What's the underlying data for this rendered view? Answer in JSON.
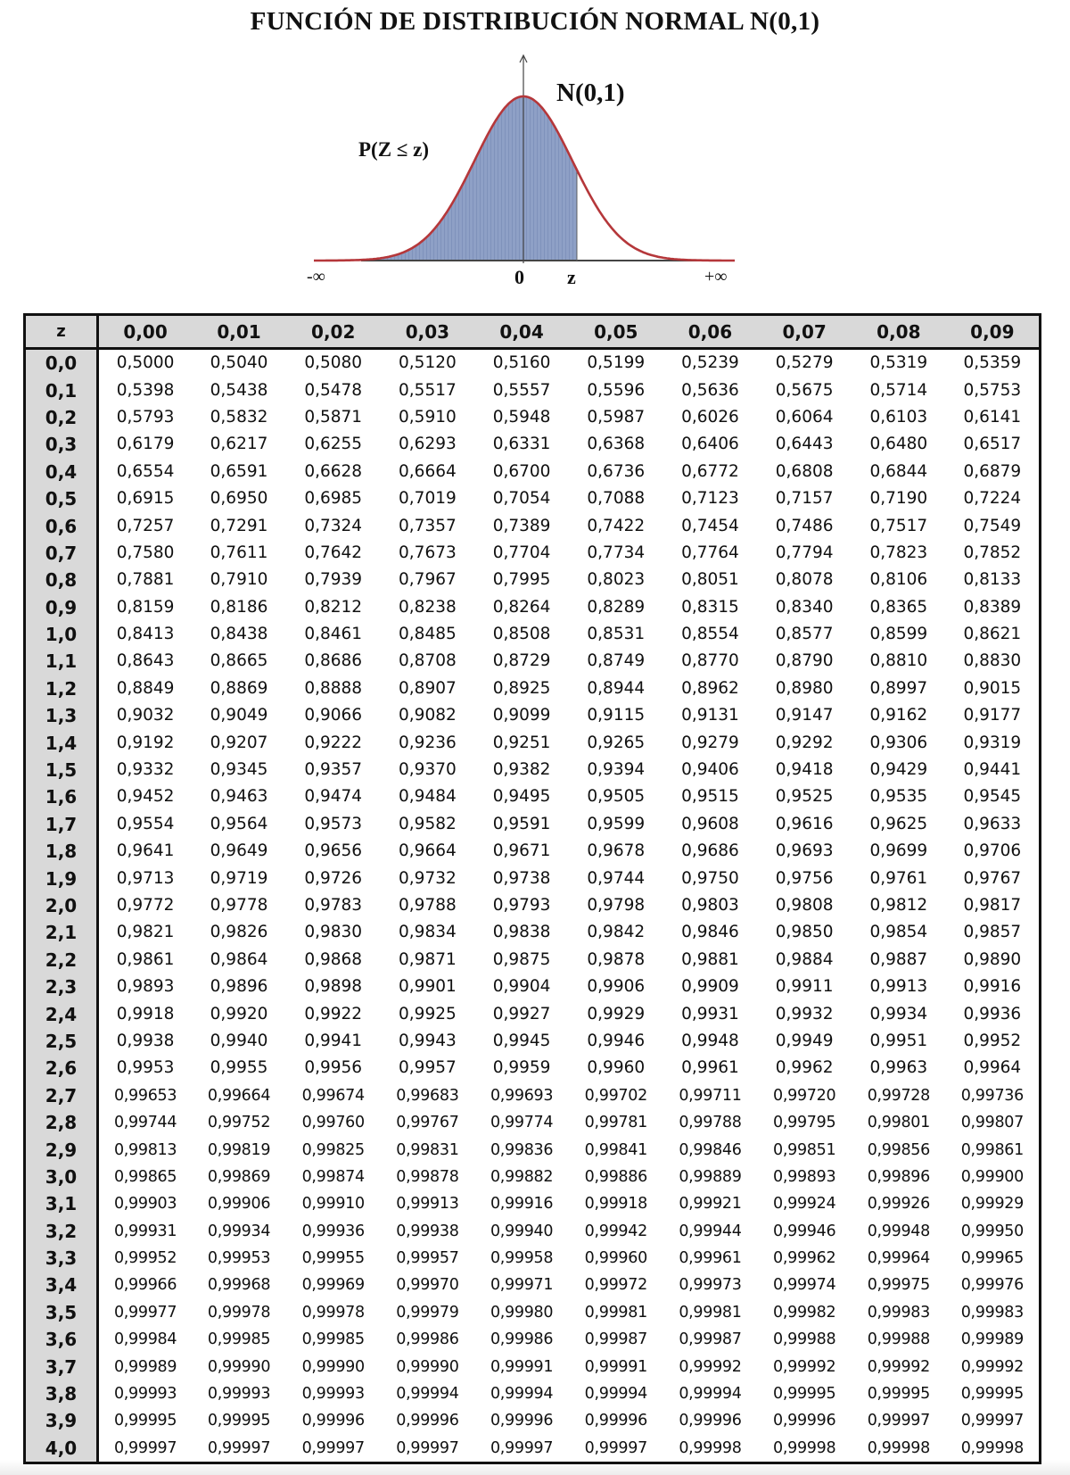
{
  "title": "FUNCIÓN DE DISTRIBUCIÓN NORMAL N(0,1)",
  "figure": {
    "curve_label": "N(0,1)",
    "area_label": "P(Z ≤ z)",
    "axis_labels": {
      "minus_infinity": "-∞",
      "zero": "0",
      "z": "z",
      "plus_infinity": "+∞"
    },
    "colors": {
      "curve": "#b5373a",
      "area": "#8ea0c6",
      "axis": "#333333"
    }
  },
  "table": {
    "corner_header": "z",
    "columns": [
      "0,00",
      "0,01",
      "0,02",
      "0,03",
      "0,04",
      "0,05",
      "0,06",
      "0,07",
      "0,08",
      "0,09"
    ],
    "rows": [
      {
        "z": "0,0",
        "values": [
          "0,5000",
          "0,5040",
          "0,5080",
          "0,5120",
          "0,5160",
          "0,5199",
          "0,5239",
          "0,5279",
          "0,5319",
          "0,5359"
        ]
      },
      {
        "z": "0,1",
        "values": [
          "0,5398",
          "0,5438",
          "0,5478",
          "0,5517",
          "0,5557",
          "0,5596",
          "0,5636",
          "0,5675",
          "0,5714",
          "0,5753"
        ]
      },
      {
        "z": "0,2",
        "values": [
          "0,5793",
          "0,5832",
          "0,5871",
          "0,5910",
          "0,5948",
          "0,5987",
          "0,6026",
          "0,6064",
          "0,6103",
          "0,6141"
        ]
      },
      {
        "z": "0,3",
        "values": [
          "0,6179",
          "0,6217",
          "0,6255",
          "0,6293",
          "0,6331",
          "0,6368",
          "0,6406",
          "0,6443",
          "0,6480",
          "0,6517"
        ]
      },
      {
        "z": "0,4",
        "values": [
          "0,6554",
          "0,6591",
          "0,6628",
          "0,6664",
          "0,6700",
          "0,6736",
          "0,6772",
          "0,6808",
          "0,6844",
          "0,6879"
        ]
      },
      {
        "z": "0,5",
        "values": [
          "0,6915",
          "0,6950",
          "0,6985",
          "0,7019",
          "0,7054",
          "0,7088",
          "0,7123",
          "0,7157",
          "0,7190",
          "0,7224"
        ]
      },
      {
        "z": "0,6",
        "values": [
          "0,7257",
          "0,7291",
          "0,7324",
          "0,7357",
          "0,7389",
          "0,7422",
          "0,7454",
          "0,7486",
          "0,7517",
          "0,7549"
        ]
      },
      {
        "z": "0,7",
        "values": [
          "0,7580",
          "0,7611",
          "0,7642",
          "0,7673",
          "0,7704",
          "0,7734",
          "0,7764",
          "0,7794",
          "0,7823",
          "0,7852"
        ]
      },
      {
        "z": "0,8",
        "values": [
          "0,7881",
          "0,7910",
          "0,7939",
          "0,7967",
          "0,7995",
          "0,8023",
          "0,8051",
          "0,8078",
          "0,8106",
          "0,8133"
        ]
      },
      {
        "z": "0,9",
        "values": [
          "0,8159",
          "0,8186",
          "0,8212",
          "0,8238",
          "0,8264",
          "0,8289",
          "0,8315",
          "0,8340",
          "0,8365",
          "0,8389"
        ]
      },
      {
        "z": "1,0",
        "values": [
          "0,8413",
          "0,8438",
          "0,8461",
          "0,8485",
          "0,8508",
          "0,8531",
          "0,8554",
          "0,8577",
          "0,8599",
          "0,8621"
        ]
      },
      {
        "z": "1,1",
        "values": [
          "0,8643",
          "0,8665",
          "0,8686",
          "0,8708",
          "0,8729",
          "0,8749",
          "0,8770",
          "0,8790",
          "0,8810",
          "0,8830"
        ]
      },
      {
        "z": "1,2",
        "values": [
          "0,8849",
          "0,8869",
          "0,8888",
          "0,8907",
          "0,8925",
          "0,8944",
          "0,8962",
          "0,8980",
          "0,8997",
          "0,9015"
        ]
      },
      {
        "z": "1,3",
        "values": [
          "0,9032",
          "0,9049",
          "0,9066",
          "0,9082",
          "0,9099",
          "0,9115",
          "0,9131",
          "0,9147",
          "0,9162",
          "0,9177"
        ]
      },
      {
        "z": "1,4",
        "values": [
          "0,9192",
          "0,9207",
          "0,9222",
          "0,9236",
          "0,9251",
          "0,9265",
          "0,9279",
          "0,9292",
          "0,9306",
          "0,9319"
        ]
      },
      {
        "z": "1,5",
        "values": [
          "0,9332",
          "0,9345",
          "0,9357",
          "0,9370",
          "0,9382",
          "0,9394",
          "0,9406",
          "0,9418",
          "0,9429",
          "0,9441"
        ]
      },
      {
        "z": "1,6",
        "values": [
          "0,9452",
          "0,9463",
          "0,9474",
          "0,9484",
          "0,9495",
          "0,9505",
          "0,9515",
          "0,9525",
          "0,9535",
          "0,9545"
        ]
      },
      {
        "z": "1,7",
        "values": [
          "0,9554",
          "0,9564",
          "0,9573",
          "0,9582",
          "0,9591",
          "0,9599",
          "0,9608",
          "0,9616",
          "0,9625",
          "0,9633"
        ]
      },
      {
        "z": "1,8",
        "values": [
          "0,9641",
          "0,9649",
          "0,9656",
          "0,9664",
          "0,9671",
          "0,9678",
          "0,9686",
          "0,9693",
          "0,9699",
          "0,9706"
        ]
      },
      {
        "z": "1,9",
        "values": [
          "0,9713",
          "0,9719",
          "0,9726",
          "0,9732",
          "0,9738",
          "0,9744",
          "0,9750",
          "0,9756",
          "0,9761",
          "0,9767"
        ]
      },
      {
        "z": "2,0",
        "values": [
          "0,9772",
          "0,9778",
          "0,9783",
          "0,9788",
          "0,9793",
          "0,9798",
          "0,9803",
          "0,9808",
          "0,9812",
          "0,9817"
        ]
      },
      {
        "z": "2,1",
        "values": [
          "0,9821",
          "0,9826",
          "0,9830",
          "0,9834",
          "0,9838",
          "0,9842",
          "0,9846",
          "0,9850",
          "0,9854",
          "0,9857"
        ]
      },
      {
        "z": "2,2",
        "values": [
          "0,9861",
          "0,9864",
          "0,9868",
          "0,9871",
          "0,9875",
          "0,9878",
          "0,9881",
          "0,9884",
          "0,9887",
          "0,9890"
        ]
      },
      {
        "z": "2,3",
        "values": [
          "0,9893",
          "0,9896",
          "0,9898",
          "0,9901",
          "0,9904",
          "0,9906",
          "0,9909",
          "0,9911",
          "0,9913",
          "0,9916"
        ]
      },
      {
        "z": "2,4",
        "values": [
          "0,9918",
          "0,9920",
          "0,9922",
          "0,9925",
          "0,9927",
          "0,9929",
          "0,9931",
          "0,9932",
          "0,9934",
          "0,9936"
        ]
      },
      {
        "z": "2,5",
        "values": [
          "0,9938",
          "0,9940",
          "0,9941",
          "0,9943",
          "0,9945",
          "0,9946",
          "0,9948",
          "0,9949",
          "0,9951",
          "0,9952"
        ]
      },
      {
        "z": "2,6",
        "values": [
          "0,9953",
          "0,9955",
          "0,9956",
          "0,9957",
          "0,9959",
          "0,9960",
          "0,9961",
          "0,9962",
          "0,9963",
          "0,9964"
        ]
      },
      {
        "z": "2,7",
        "values": [
          "0,99653",
          "0,99664",
          "0,99674",
          "0,99683",
          "0,99693",
          "0,99702",
          "0,99711",
          "0,99720",
          "0,99728",
          "0,99736"
        ]
      },
      {
        "z": "2,8",
        "values": [
          "0,99744",
          "0,99752",
          "0,99760",
          "0,99767",
          "0,99774",
          "0,99781",
          "0,99788",
          "0,99795",
          "0,99801",
          "0,99807"
        ]
      },
      {
        "z": "2,9",
        "values": [
          "0,99813",
          "0,99819",
          "0,99825",
          "0,99831",
          "0,99836",
          "0,99841",
          "0,99846",
          "0,99851",
          "0,99856",
          "0,99861"
        ]
      },
      {
        "z": "3,0",
        "values": [
          "0,99865",
          "0,99869",
          "0,99874",
          "0,99878",
          "0,99882",
          "0,99886",
          "0,99889",
          "0,99893",
          "0,99896",
          "0,99900"
        ]
      },
      {
        "z": "3,1",
        "values": [
          "0,99903",
          "0,99906",
          "0,99910",
          "0,99913",
          "0,99916",
          "0,99918",
          "0,99921",
          "0,99924",
          "0,99926",
          "0,99929"
        ]
      },
      {
        "z": "3,2",
        "values": [
          "0,99931",
          "0,99934",
          "0,99936",
          "0,99938",
          "0,99940",
          "0,99942",
          "0,99944",
          "0,99946",
          "0,99948",
          "0,99950"
        ]
      },
      {
        "z": "3,3",
        "values": [
          "0,99952",
          "0,99953",
          "0,99955",
          "0,99957",
          "0,99958",
          "0,99960",
          "0,99961",
          "0,99962",
          "0,99964",
          "0,99965"
        ]
      },
      {
        "z": "3,4",
        "values": [
          "0,99966",
          "0,99968",
          "0,99969",
          "0,99970",
          "0,99971",
          "0,99972",
          "0,99973",
          "0,99974",
          "0,99975",
          "0,99976"
        ]
      },
      {
        "z": "3,5",
        "values": [
          "0,99977",
          "0,99978",
          "0,99978",
          "0,99979",
          "0,99980",
          "0,99981",
          "0,99981",
          "0,99982",
          "0,99983",
          "0,99983"
        ]
      },
      {
        "z": "3,6",
        "values": [
          "0,99984",
          "0,99985",
          "0,99985",
          "0,99986",
          "0,99986",
          "0,99987",
          "0,99987",
          "0,99988",
          "0,99988",
          "0,99989"
        ]
      },
      {
        "z": "3,7",
        "values": [
          "0,99989",
          "0,99990",
          "0,99990",
          "0,99990",
          "0,99991",
          "0,99991",
          "0,99992",
          "0,99992",
          "0,99992",
          "0,99992"
        ]
      },
      {
        "z": "3,8",
        "values": [
          "0,99993",
          "0,99993",
          "0,99993",
          "0,99994",
          "0,99994",
          "0,99994",
          "0,99994",
          "0,99995",
          "0,99995",
          "0,99995"
        ]
      },
      {
        "z": "3,9",
        "values": [
          "0,99995",
          "0,99995",
          "0,99996",
          "0,99996",
          "0,99996",
          "0,99996",
          "0,99996",
          "0,99996",
          "0,99997",
          "0,99997"
        ]
      },
      {
        "z": "4,0",
        "values": [
          "0,99997",
          "0,99997",
          "0,99997",
          "0,99997",
          "0,99997",
          "0,99997",
          "0,99998",
          "0,99998",
          "0,99998",
          "0,99998"
        ]
      }
    ]
  }
}
